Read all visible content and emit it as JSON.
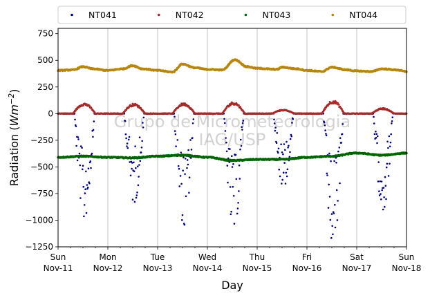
{
  "chart_data": {
    "type": "scatter",
    "xlabel": "Day",
    "ylabel_main": "Radiation (",
    "ylabel_unit": "Wm",
    "ylabel_exp": "−2",
    "ylabel_close": ")",
    "ylim": [
      -1250,
      800
    ],
    "yticks": [
      -1250,
      -1000,
      -750,
      -500,
      -250,
      0,
      250,
      500,
      750
    ],
    "ytick_labels": [
      "−1250",
      "−1000",
      "−750",
      "−500",
      "−250",
      "0",
      "250",
      "500",
      "750"
    ],
    "xlim_days": [
      0,
      7
    ],
    "xticks": [
      {
        "day": 0,
        "line1": "Sun",
        "line2": "Nov-11"
      },
      {
        "day": 1,
        "line1": "Mon",
        "line2": "Nov-12"
      },
      {
        "day": 2,
        "line1": "Tue",
        "line2": "Nov-13"
      },
      {
        "day": 3,
        "line1": "Wed",
        "line2": "Nov-14"
      },
      {
        "day": 4,
        "line1": "Thu",
        "line2": "Nov-15"
      },
      {
        "day": 5,
        "line1": "Fri",
        "line2": "Nov-16"
      },
      {
        "day": 6,
        "line1": "Sat",
        "line2": "Nov-17"
      },
      {
        "day": 7,
        "line1": "Sun",
        "line2": "Nov-18"
      }
    ],
    "grid": "vertical",
    "legend_position": "top",
    "watermark": [
      "Grupo de Micrometeorologia",
      "IAG/USP"
    ],
    "series": [
      {
        "name": "NT041",
        "color": "#00007f",
        "baseline": 0,
        "daily_peak": [
          -980,
          -830,
          -1050,
          -1100,
          -690,
          -1250,
          -900
        ]
      },
      {
        "name": "NT042",
        "color": "#a52a2a",
        "baseline": 0,
        "daily_peak": [
          95,
          90,
          95,
          105,
          35,
          120,
          50
        ]
      },
      {
        "name": "NT043",
        "color": "#006400",
        "baseline": -410,
        "points": [
          [
            0,
            -410
          ],
          [
            0.5,
            -400
          ],
          [
            1,
            -410
          ],
          [
            1.5,
            -415
          ],
          [
            2,
            -400
          ],
          [
            2.5,
            -390
          ],
          [
            3,
            -410
          ],
          [
            3.5,
            -440
          ],
          [
            4,
            -430
          ],
          [
            4.5,
            -430
          ],
          [
            5,
            -410
          ],
          [
            5.5,
            -400
          ],
          [
            6,
            -370
          ],
          [
            6.5,
            -390
          ],
          [
            7,
            -370
          ]
        ]
      },
      {
        "name": "NT044",
        "color": "#b8860b",
        "points": [
          [
            0,
            405
          ],
          [
            0.3,
            410
          ],
          [
            0.5,
            440
          ],
          [
            0.7,
            420
          ],
          [
            1,
            405
          ],
          [
            1.3,
            420
          ],
          [
            1.5,
            450
          ],
          [
            1.7,
            420
          ],
          [
            2,
            405
          ],
          [
            2.3,
            390
          ],
          [
            2.5,
            465
          ],
          [
            2.75,
            430
          ],
          [
            3,
            415
          ],
          [
            3.3,
            410
          ],
          [
            3.55,
            505
          ],
          [
            3.8,
            440
          ],
          [
            4,
            425
          ],
          [
            4.4,
            415
          ],
          [
            4.5,
            435
          ],
          [
            4.8,
            420
          ],
          [
            5,
            405
          ],
          [
            5.3,
            395
          ],
          [
            5.5,
            435
          ],
          [
            5.8,
            410
          ],
          [
            6,
            400
          ],
          [
            6.3,
            395
          ],
          [
            6.5,
            420
          ],
          [
            6.8,
            410
          ],
          [
            7,
            395
          ]
        ]
      }
    ]
  }
}
